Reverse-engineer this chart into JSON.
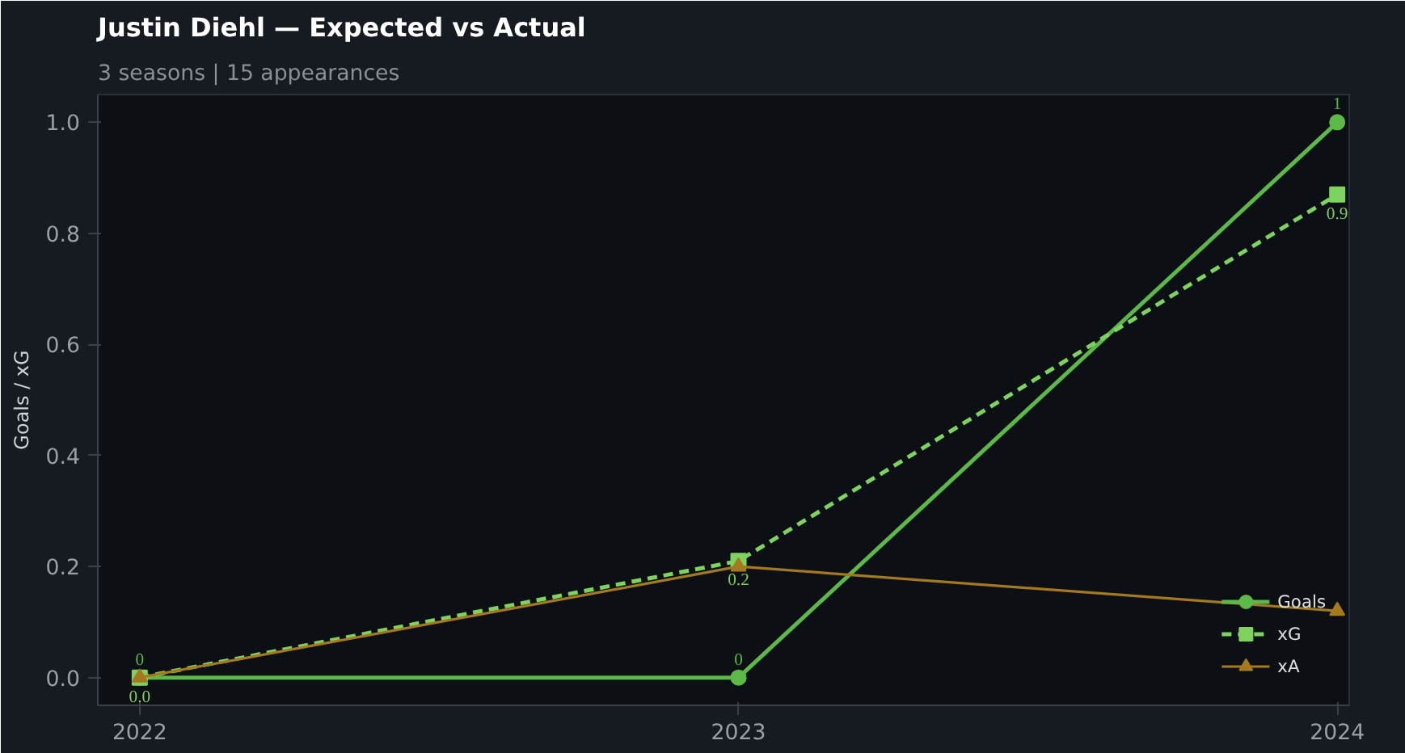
{
  "chart_data": {
    "type": "line",
    "title": "Justin Diehl — Expected vs Actual",
    "subtitle": "3 seasons | 15 appearances",
    "ylabel": "Goals / xG",
    "x": [
      2022,
      2023,
      2024
    ],
    "series": [
      {
        "name": "Goals",
        "color": "#5cb947",
        "values": [
          0,
          0,
          1
        ],
        "marker": "circle",
        "line_style": "solid",
        "value_labels": [
          "0",
          "0",
          "1"
        ]
      },
      {
        "name": "xG",
        "color": "#7ed35e",
        "values": [
          0,
          0.21,
          0.87
        ],
        "marker": "square",
        "line_style": "dashed",
        "value_labels": [
          "0.0",
          "0.2",
          "0.9"
        ]
      },
      {
        "name": "xA",
        "color": "#a57a1f",
        "values": [
          0,
          0.2,
          0.12
        ],
        "marker": "triangle",
        "line_style": "solid"
      }
    ],
    "xlim": [
      2021.93,
      2024.02
    ],
    "xticks": [
      2022,
      2023,
      2024
    ],
    "ylim": [
      -0.05,
      1.05
    ],
    "yticks": [
      {
        "value": 0,
        "label": "0.0"
      },
      {
        "value": 0.2,
        "label": "0.2"
      },
      {
        "value": 0.4,
        "label": "0.4"
      },
      {
        "value": 0.6,
        "label": "0.6"
      },
      {
        "value": 0.8,
        "label": "0.8"
      },
      {
        "value": 1,
        "label": "1.0"
      }
    ],
    "grid": false,
    "legend": "bottom right"
  }
}
